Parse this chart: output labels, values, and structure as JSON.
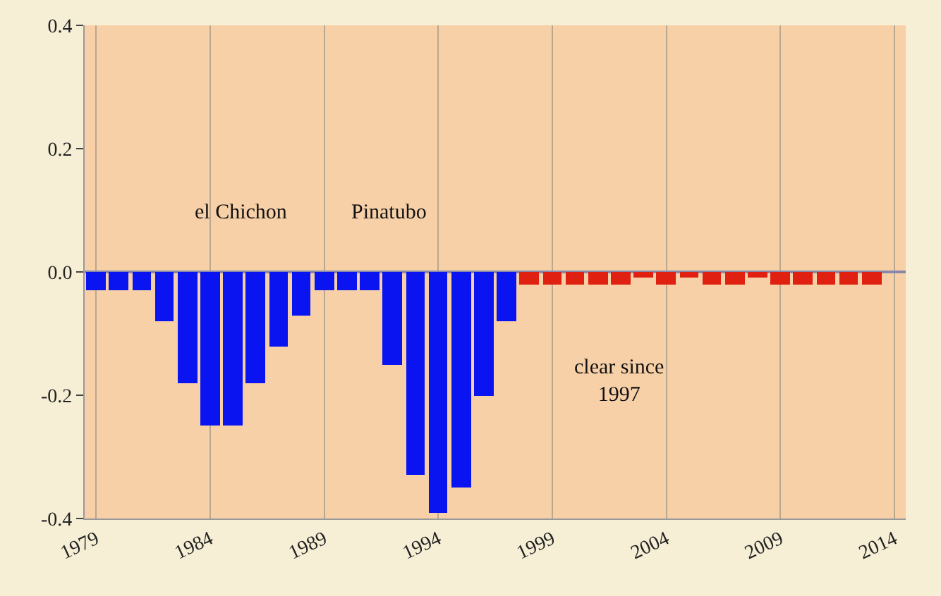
{
  "chart_data": {
    "type": "bar",
    "x": [
      1979,
      1980,
      1981,
      1982,
      1983,
      1984,
      1985,
      1986,
      1987,
      1988,
      1989,
      1990,
      1991,
      1992,
      1993,
      1994,
      1995,
      1996,
      1997,
      1998,
      1999,
      2000,
      2001,
      2002,
      2003,
      2004,
      2005,
      2006,
      2007,
      2008,
      2009,
      2010,
      2011,
      2012,
      2013
    ],
    "series": [
      {
        "color": "#0a14f0",
        "values": [
          -0.03,
          -0.03,
          -0.03,
          -0.08,
          -0.18,
          -0.25,
          -0.25,
          -0.18,
          -0.12,
          -0.07,
          -0.03,
          -0.03,
          -0.03,
          -0.15,
          -0.33,
          -0.39,
          -0.35,
          -0.2,
          -0.08,
          null,
          null,
          null,
          null,
          null,
          null,
          null,
          null,
          null,
          null,
          null,
          null,
          null,
          null,
          null,
          null
        ]
      },
      {
        "color": "#e02010",
        "values": [
          null,
          null,
          null,
          null,
          null,
          null,
          null,
          null,
          null,
          null,
          null,
          null,
          null,
          null,
          null,
          null,
          null,
          null,
          null,
          -0.02,
          -0.02,
          -0.02,
          -0.02,
          -0.02,
          -0.01,
          -0.02,
          -0.01,
          -0.02,
          -0.02,
          -0.01,
          -0.02,
          -0.02,
          -0.02,
          -0.02,
          -0.02
        ]
      }
    ],
    "xlim": [
      1978.5,
      2014.5
    ],
    "xticks": [
      1979,
      1984,
      1989,
      1994,
      1999,
      2004,
      2009,
      2014
    ],
    "ylim": [
      -0.4,
      0.4
    ],
    "yticks": [
      {
        "value": -0.4,
        "label": "-0.4"
      },
      {
        "value": -0.2,
        "label": "-0.2"
      },
      {
        "value": 0,
        "label": "0.0"
      },
      {
        "value": 0.2,
        "label": "0.2"
      },
      {
        "value": 0.4,
        "label": "0.4"
      }
    ],
    "grid": "x",
    "annotations": [
      "el Chichon",
      "Pinatubo",
      "clear since\n1997"
    ]
  }
}
